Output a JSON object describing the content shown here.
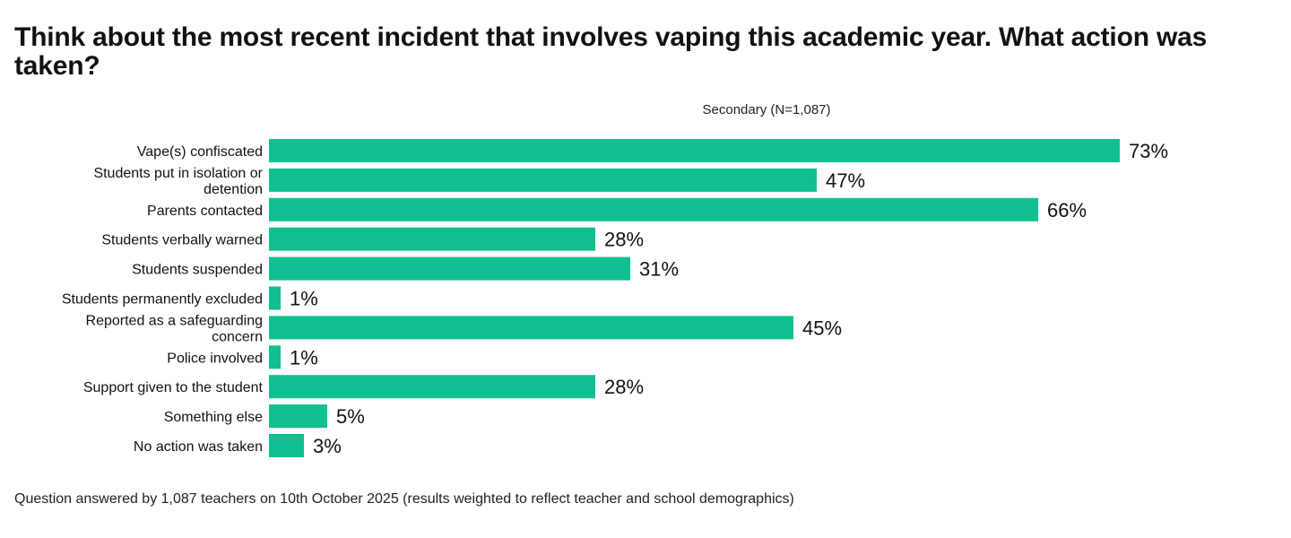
{
  "chart_data": {
    "type": "bar",
    "orientation": "horizontal",
    "title": "Think about the most recent incident that involves vaping this academic year. What action was taken?",
    "series": [
      {
        "name": "Secondary (N=1,087)",
        "color": "#12BF91",
        "values": [
          73,
          47,
          66,
          28,
          31,
          1,
          45,
          1,
          28,
          5,
          3
        ]
      }
    ],
    "categories": [
      "Vape(s) confiscated",
      "Students put in isolation or detention",
      "Parents contacted",
      "Students verbally warned",
      "Students suspended",
      "Students permanently excluded",
      "Reported as a safeguarding concern",
      "Police involved",
      "Support given to the student",
      "Something else",
      "No action was taken"
    ],
    "category_lines": [
      [
        "Vape(s) confiscated"
      ],
      [
        "Students put in isolation or",
        "detention"
      ],
      [
        "Parents contacted"
      ],
      [
        "Students verbally warned"
      ],
      [
        "Students suspended"
      ],
      [
        "Students permanently excluded"
      ],
      [
        "Reported as a safeguarding",
        "concern"
      ],
      [
        "Police involved"
      ],
      [
        "Support given to the student"
      ],
      [
        "Something else"
      ],
      [
        "No action was taken"
      ]
    ],
    "value_labels": [
      "73%",
      "47%",
      "66%",
      "28%",
      "31%",
      "1%",
      "45%",
      "1%",
      "28%",
      "5%",
      "3%"
    ],
    "unit": "%",
    "xlim": [
      0,
      100
    ],
    "grid": false,
    "legend": "none"
  },
  "footnote": "Question answered by 1,087 teachers on 10th October 2025 (results weighted to reflect teacher and school demographics)"
}
